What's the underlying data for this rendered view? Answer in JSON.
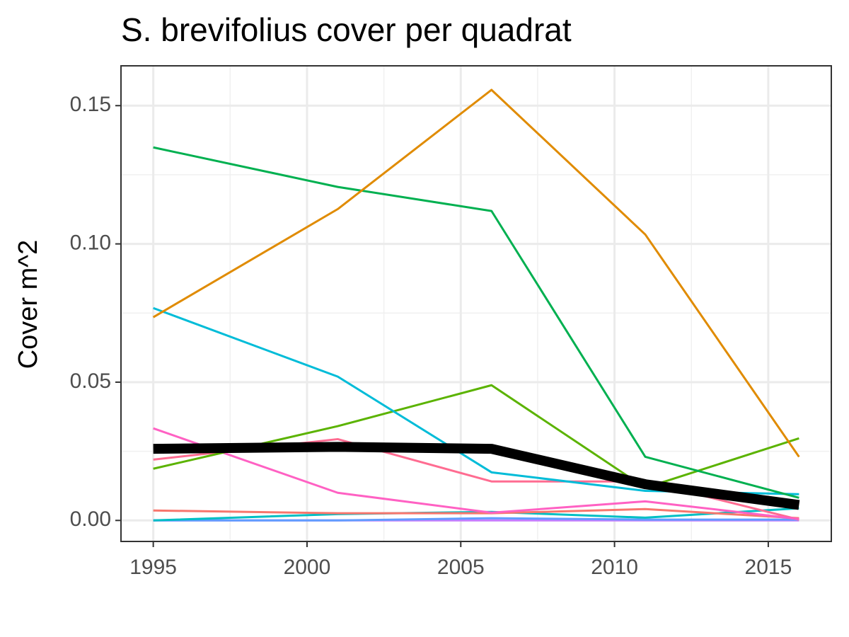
{
  "chart_data": {
    "type": "line",
    "title": "S. brevifolius cover per quadrat",
    "y_label": "Cover m^2",
    "x": [
      1995,
      2001,
      2006,
      2011,
      2016
    ],
    "xlim": [
      1993.95,
      2017.05
    ],
    "xticks": [
      1995,
      2000,
      2005,
      2010,
      2015
    ],
    "xminorticks": [
      1997.5,
      2002.5,
      2007.5,
      2012.5
    ],
    "ylim": [
      -0.0076,
      0.1644
    ],
    "yticks": [
      {
        "value": 0,
        "label": "0.00"
      },
      {
        "value": 0.05,
        "label": "0.05"
      },
      {
        "value": 0.1,
        "label": "0.10"
      },
      {
        "value": 0.15,
        "label": "0.15"
      }
    ],
    "yminorticks": [
      0.025,
      0.075,
      0.125
    ],
    "grid": true,
    "series": [
      {
        "color": "#C77CFF",
        "values": [
          0,
          0,
          0,
          0,
          0
        ]
      },
      {
        "color": "#619CFF",
        "values": [
          0,
          0,
          0.0008,
          0.0003,
          0.0003
        ]
      },
      {
        "color": "#00BFC4",
        "values": [
          0,
          0.0023,
          0.0031,
          0.001,
          0.0044
        ]
      },
      {
        "color": "#F8766D",
        "values": [
          0.0036,
          0.0026,
          0.0026,
          0.0041,
          0.0008
        ]
      },
      {
        "color": "#FF6C91",
        "values": [
          0.022,
          0.0294,
          0.0141,
          0.0141,
          0.0003
        ]
      },
      {
        "color": "#FF61C3",
        "values": [
          0.0333,
          0.01,
          0.0028,
          0.0069,
          0.0005
        ]
      },
      {
        "color": "#5BB300",
        "values": [
          0.0187,
          0.0341,
          0.0489,
          0.0118,
          0.0297
        ]
      },
      {
        "color": "#00BCD8",
        "values": [
          0.0768,
          0.052,
          0.0174,
          0.0107,
          0.0095
        ]
      },
      {
        "color": "#00B050",
        "values": [
          0.1349,
          0.1206,
          0.1119,
          0.023,
          0.0082
        ]
      },
      {
        "color": "#E08B00",
        "values": [
          0.0735,
          0.1126,
          0.1557,
          0.1034,
          0.023
        ]
      },
      {
        "color": "#000000",
        "width": 14,
        "values": [
          0.0259,
          0.0266,
          0.0259,
          0.0131,
          0.0056
        ]
      }
    ]
  }
}
